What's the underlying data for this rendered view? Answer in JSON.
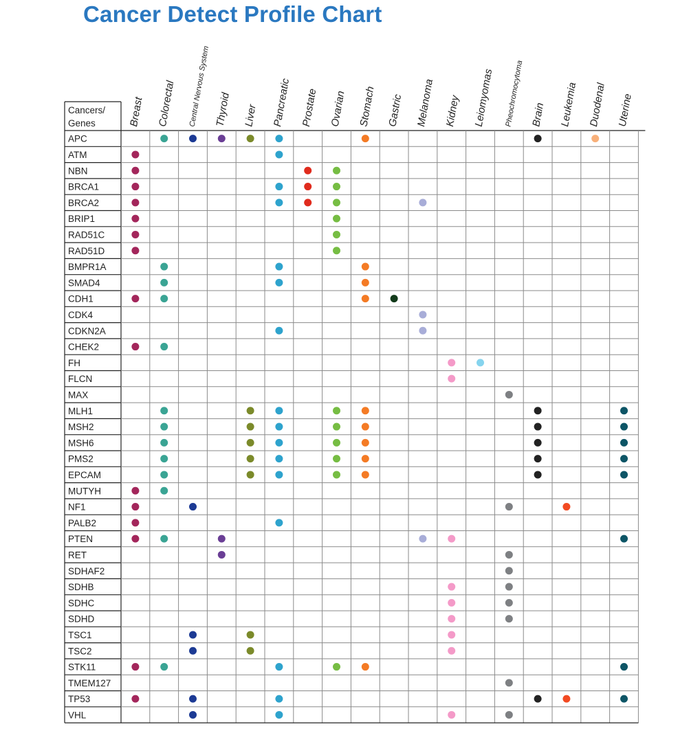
{
  "title": "Cancer Detect Profile Chart",
  "chart_data": {
    "type": "table",
    "corner_label": [
      "Cancers/",
      "Genes"
    ],
    "columns": [
      "Breast",
      "Colorectal",
      "Central Nervous System",
      "Thyroid",
      "Liver",
      "Pancreatic",
      "Prostate",
      "Ovarian",
      "Stomach",
      "Gastric",
      "Melanoma",
      "Kidney",
      "Leiomyomas",
      "Pheochromocytoma",
      "Brain",
      "Leukemia",
      "Duodenal",
      "Uterine"
    ],
    "column_colors": {
      "Breast": "#a3265b",
      "Colorectal": "#3aa494",
      "Central Nervous System": "#1c3a94",
      "Thyroid": "#6a3e95",
      "Liver": "#7b8a2a",
      "Pancreatic": "#2ea3cd",
      "Prostate": "#e02b1d",
      "Ovarian": "#76bd43",
      "Stomach": "#f47b25",
      "Gastric": "#123a1a",
      "Melanoma": "#a8add8",
      "Kidney": "#f49ac8",
      "Leiomyomas": "#86d4ee",
      "Pheochromocytoma": "#7e8083",
      "Brain": "#222222",
      "Leukemia": "#f24a22",
      "Duodenal": "#f8b07a",
      "Uterine": "#0d5566"
    },
    "rows": [
      {
        "gene": "APC",
        "cancers": [
          "Colorectal",
          "Central Nervous System",
          "Thyroid",
          "Liver",
          "Pancreatic",
          "Stomach",
          "Brain",
          "Duodenal"
        ]
      },
      {
        "gene": "ATM",
        "cancers": [
          "Breast",
          "Pancreatic"
        ]
      },
      {
        "gene": "NBN",
        "cancers": [
          "Breast",
          "Prostate",
          "Ovarian"
        ]
      },
      {
        "gene": "BRCA1",
        "cancers": [
          "Breast",
          "Pancreatic",
          "Prostate",
          "Ovarian"
        ]
      },
      {
        "gene": "BRCA2",
        "cancers": [
          "Breast",
          "Pancreatic",
          "Prostate",
          "Ovarian",
          "Melanoma"
        ]
      },
      {
        "gene": "BRIP1",
        "cancers": [
          "Breast",
          "Ovarian"
        ]
      },
      {
        "gene": "RAD51C",
        "cancers": [
          "Breast",
          "Ovarian"
        ]
      },
      {
        "gene": "RAD51D",
        "cancers": [
          "Breast",
          "Ovarian"
        ]
      },
      {
        "gene": "BMPR1A",
        "cancers": [
          "Colorectal",
          "Pancreatic",
          "Stomach"
        ]
      },
      {
        "gene": "SMAD4",
        "cancers": [
          "Colorectal",
          "Pancreatic",
          "Stomach"
        ]
      },
      {
        "gene": "CDH1",
        "cancers": [
          "Breast",
          "Colorectal",
          "Stomach",
          "Gastric"
        ]
      },
      {
        "gene": "CDK4",
        "cancers": [
          "Melanoma"
        ]
      },
      {
        "gene": "CDKN2A",
        "cancers": [
          "Pancreatic",
          "Melanoma"
        ]
      },
      {
        "gene": "CHEK2",
        "cancers": [
          "Breast",
          "Colorectal"
        ]
      },
      {
        "gene": "FH",
        "cancers": [
          "Kidney",
          "Leiomyomas"
        ]
      },
      {
        "gene": "FLCN",
        "cancers": [
          "Kidney"
        ]
      },
      {
        "gene": "MAX",
        "cancers": [
          "Pheochromocytoma"
        ]
      },
      {
        "gene": "MLH1",
        "cancers": [
          "Colorectal",
          "Liver",
          "Pancreatic",
          "Ovarian",
          "Stomach",
          "Brain",
          "Uterine"
        ]
      },
      {
        "gene": "MSH2",
        "cancers": [
          "Colorectal",
          "Liver",
          "Pancreatic",
          "Ovarian",
          "Stomach",
          "Brain",
          "Uterine"
        ]
      },
      {
        "gene": "MSH6",
        "cancers": [
          "Colorectal",
          "Liver",
          "Pancreatic",
          "Ovarian",
          "Stomach",
          "Brain",
          "Uterine"
        ]
      },
      {
        "gene": "PMS2",
        "cancers": [
          "Colorectal",
          "Liver",
          "Pancreatic",
          "Ovarian",
          "Stomach",
          "Brain",
          "Uterine"
        ]
      },
      {
        "gene": "EPCAM",
        "cancers": [
          "Colorectal",
          "Liver",
          "Pancreatic",
          "Ovarian",
          "Stomach",
          "Brain",
          "Uterine"
        ]
      },
      {
        "gene": "MUTYH",
        "cancers": [
          "Breast",
          "Colorectal"
        ]
      },
      {
        "gene": "NF1",
        "cancers": [
          "Breast",
          "Central Nervous System",
          "Pheochromocytoma",
          "Leukemia"
        ]
      },
      {
        "gene": "PALB2",
        "cancers": [
          "Breast",
          "Pancreatic"
        ]
      },
      {
        "gene": "PTEN",
        "cancers": [
          "Breast",
          "Colorectal",
          "Thyroid",
          "Melanoma",
          "Kidney",
          "Uterine"
        ]
      },
      {
        "gene": "RET",
        "cancers": [
          "Thyroid",
          "Pheochromocytoma"
        ]
      },
      {
        "gene": "SDHAF2",
        "cancers": [
          "Pheochromocytoma"
        ]
      },
      {
        "gene": "SDHB",
        "cancers": [
          "Kidney",
          "Pheochromocytoma"
        ]
      },
      {
        "gene": "SDHC",
        "cancers": [
          "Kidney",
          "Pheochromocytoma"
        ]
      },
      {
        "gene": "SDHD",
        "cancers": [
          "Kidney",
          "Pheochromocytoma"
        ]
      },
      {
        "gene": "TSC1",
        "cancers": [
          "Central Nervous System",
          "Liver",
          "Kidney"
        ]
      },
      {
        "gene": "TSC2",
        "cancers": [
          "Central Nervous System",
          "Liver",
          "Kidney"
        ]
      },
      {
        "gene": "STK11",
        "cancers": [
          "Breast",
          "Colorectal",
          "Pancreatic",
          "Ovarian",
          "Stomach",
          "Uterine"
        ]
      },
      {
        "gene": "TMEM127",
        "cancers": [
          "Pheochromocytoma"
        ]
      },
      {
        "gene": "TP53",
        "cancers": [
          "Breast",
          "Central Nervous System",
          "Pancreatic",
          "Brain",
          "Leukemia",
          "Uterine"
        ]
      },
      {
        "gene": "VHL",
        "cancers": [
          "Central Nervous System",
          "Pancreatic",
          "Kidney",
          "Pheochromocytoma"
        ]
      }
    ]
  }
}
